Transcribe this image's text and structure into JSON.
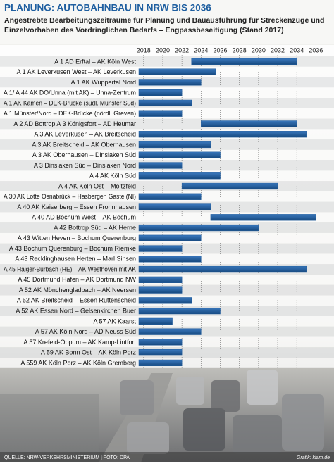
{
  "chart_data": {
    "type": "range_bar",
    "title": "PLANUNG: AUTOBAHNBAU IN NRW BIS 2036",
    "subtitle_lines": [
      "Angestrebte Bearbeitungszeiträume für Planung und Bauausführung für Streckenzüge und",
      "Einzelvorhaben des Vordringlichen Bedarfs – Engpassbeseitigung (Stand 2017)"
    ],
    "categories": [
      "A 1 AD Erftal – AK Köln West",
      "A 1 AK Leverkusen West – AK Leverkusen",
      "A 1 AK Wuppertal Nord",
      "A 1/ A 44 AK DO/Unna (mit AK) – Unna-Zentrum",
      "A 1 AK Kamen – DEK-Brücke (südl. Münster Süd)",
      "A 1 Münster/Nord – DEK-Brücke (nördl. Greven)",
      "A 2 AD Bottrop A 3 Königsfort – AD Heumar",
      "A 3 AK Leverkusen – AK Breitscheid",
      "A 3 AK Breitscheid – AK Oberhausen",
      "A 3 AK Oberhausen – Dinslaken Süd",
      "A 3 Dinslaken Süd – Dinslaken Nord",
      "A 4 AK Köln Süd",
      "A 4 AK Köln Ost – Moitzfeld",
      "A 30 AK Lotte Osnabrück – Hasbergen Gaste (NI)",
      "A 40 AK Kaiserberg – Essen Frohnhausen",
      "A 40 AD Bochum West – AK Bochum",
      "A 42 Bottrop Süd – AK Herne",
      "A 43 Witten Heven – Bochum Querenburg",
      "A 43 Bochum Querenburg – Bochum Riemke",
      "A 43 Recklinghausen Herten – Marl Sinsen",
      "A 45 Haiger-Burbach (HE) – AK Westhoven mit AK",
      "A 45 Dortmund Hafen – AK Dortmund NW",
      "A 52 AK Mönchengladbach – AK Neersen",
      "A 52 AK Breitscheid – Essen Rüttenscheid",
      "A 52 AK Essen Nord – Gelsenkirchen Buer",
      "A 57 AK Kaarst",
      "A 57 AK Köln Nord – AD Neuss Süd",
      "A 57 Krefeld-Oppum – AK Kamp-Lintfort",
      "A 59 AK Bonn Ost – AK Köln Porz",
      "A 559 AK Köln Porz – AK Köln Gremberg"
    ],
    "starts": [
      2023,
      2017.5,
      2017.5,
      2017.5,
      2017.5,
      2017.5,
      2024,
      2017.5,
      2017.5,
      2017.5,
      2017.5,
      2017.5,
      2022,
      2017.5,
      2017.5,
      2025,
      2017.5,
      2017.5,
      2017.5,
      2017.5,
      2017.5,
      2017.5,
      2017.5,
      2017.5,
      2017.5,
      2017.5,
      2017.5,
      2017.5,
      2017.5,
      2017.5
    ],
    "ends": [
      2034,
      2025.5,
      2024,
      2022,
      2023,
      2022,
      2034,
      2035,
      2025,
      2026,
      2022,
      2026,
      2032,
      2024,
      2025,
      2036,
      2030,
      2024,
      2022,
      2024,
      2035,
      2022,
      2022,
      2023,
      2026,
      2021,
      2024,
      2022,
      2022,
      2022
    ],
    "color": "#1f5b9c",
    "xlim": [
      2017.5,
      2037
    ],
    "xticks": [
      2018,
      2020,
      2022,
      2024,
      2026,
      2028,
      2030,
      2032,
      2034,
      2036
    ],
    "grid": true,
    "source": "QUELLE: NRW-VERKEHRSMINISTERIUM  |  FOTO: DPA",
    "credit": "Grafik: klam.de"
  }
}
